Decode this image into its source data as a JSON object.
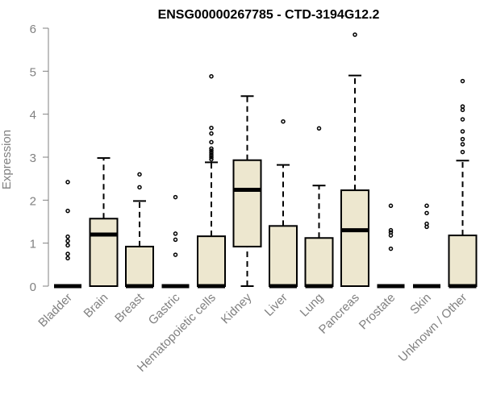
{
  "chart_data": {
    "type": "box",
    "title": "ENSG00000267785 - CTD-3194G12.2",
    "xlabel": "",
    "ylabel": "Expression",
    "ylim": [
      0,
      6
    ],
    "yticks": [
      0,
      1,
      2,
      3,
      4,
      5,
      6
    ],
    "grid": false,
    "legend": "none",
    "colors": {
      "box_fill": "#EDE7CF",
      "stroke": "#000000",
      "axis": "#808080"
    },
    "categories": [
      "Bladder",
      "Brain",
      "Breast",
      "Gastric",
      "Hematopoietic cells",
      "Kidney",
      "Liver",
      "Lung",
      "Pancreas",
      "Prostate",
      "Skin",
      "Unknown / Other"
    ],
    "boxes": [
      {
        "q1": 0,
        "median": 0,
        "q3": 0,
        "whisker_low": 0,
        "whisker_high": 0,
        "outliers": [
          2.42,
          1.75,
          1.15,
          1.05,
          0.95,
          0.75,
          0.65
        ]
      },
      {
        "q1": 0,
        "median": 1.2,
        "q3": 1.57,
        "whisker_low": 0,
        "whisker_high": 2.98,
        "outliers": []
      },
      {
        "q1": 0,
        "median": 0,
        "q3": 0.92,
        "whisker_low": 0,
        "whisker_high": 1.98,
        "outliers": [
          2.6,
          2.3
        ]
      },
      {
        "q1": 0,
        "median": 0,
        "q3": 0,
        "whisker_low": 0,
        "whisker_high": 0,
        "outliers": [
          2.07,
          1.22,
          1.08,
          0.73
        ]
      },
      {
        "q1": 0,
        "median": 0,
        "q3": 1.16,
        "whisker_low": 0,
        "whisker_high": 2.88,
        "outliers": [
          4.88,
          3.68,
          3.55,
          3.35,
          3.2,
          3.15,
          3.1,
          3.05,
          3.0,
          2.95
        ]
      },
      {
        "q1": 0.92,
        "median": 2.24,
        "q3": 2.93,
        "whisker_low": 0,
        "whisker_high": 4.42,
        "outliers": []
      },
      {
        "q1": 0,
        "median": 0,
        "q3": 1.4,
        "whisker_low": 0,
        "whisker_high": 2.82,
        "outliers": [
          3.83
        ]
      },
      {
        "q1": 0,
        "median": 0,
        "q3": 1.12,
        "whisker_low": 0,
        "whisker_high": 2.34,
        "outliers": [
          3.67
        ]
      },
      {
        "q1": 0,
        "median": 1.3,
        "q3": 2.23,
        "whisker_low": 0,
        "whisker_high": 4.9,
        "outliers": [
          5.85
        ]
      },
      {
        "q1": 0,
        "median": 0,
        "q3": 0,
        "whisker_low": 0,
        "whisker_high": 0,
        "outliers": [
          1.87,
          1.3,
          1.25,
          1.18,
          0.87
        ]
      },
      {
        "q1": 0,
        "median": 0,
        "q3": 0,
        "whisker_low": 0,
        "whisker_high": 0,
        "outliers": [
          1.87,
          1.7,
          1.45,
          1.38
        ]
      },
      {
        "q1": 0,
        "median": 0,
        "q3": 1.18,
        "whisker_low": 0,
        "whisker_high": 2.92,
        "outliers": [
          4.77,
          4.18,
          4.1,
          3.88,
          3.6,
          3.42,
          3.3,
          3.12
        ]
      }
    ]
  }
}
